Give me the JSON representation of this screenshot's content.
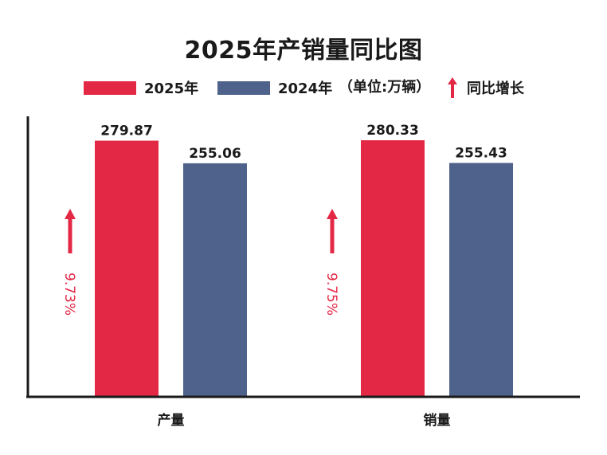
{
  "title": "2025年产销量同比图",
  "legend": {
    "series_2025": "2025年",
    "series_2024": "2024年",
    "unit": "（单位:万辆）",
    "growth": "同比增长"
  },
  "colors": {
    "series_2025": "#e32845",
    "series_2024": "#4f628b",
    "growth": "#e32845",
    "axis": "#1a1a1a"
  },
  "icons": {
    "growth": "up-arrow-icon"
  },
  "chart_data": {
    "type": "bar",
    "categories": [
      "产量",
      "销量"
    ],
    "series": [
      {
        "name": "2025年",
        "values": [
          279.87,
          280.33
        ]
      },
      {
        "name": "2024年",
        "values": [
          255.06,
          255.43
        ]
      }
    ],
    "value_labels": [
      [
        "279.87",
        "280.33"
      ],
      [
        "255.06",
        "255.43"
      ]
    ],
    "growth_labels": [
      "9.73%",
      "9.75%"
    ],
    "ylim": [
      0,
      280.33
    ],
    "legend_position": "top",
    "grid": false
  }
}
